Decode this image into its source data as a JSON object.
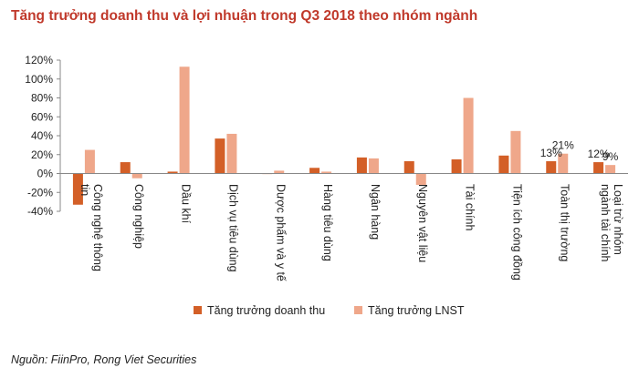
{
  "title": "Tăng trưởng doanh thu và lợi nhuận trong Q3 2018 theo nhóm ngành",
  "source": "Nguồn: FiinPro, Rong Viet Securities",
  "colors": {
    "revenue": "#d35f27",
    "profit": "#efa78a",
    "axis": "#888888",
    "title": "#c0392b"
  },
  "chart_data": {
    "type": "bar",
    "categories": [
      [
        "Công nghệ thông",
        "tin"
      ],
      [
        "Công nghiệp"
      ],
      [
        "Dầu khí"
      ],
      [
        "Dịch vụ tiêu dùng"
      ],
      [
        "Dược phẩm và y tế"
      ],
      [
        "Hàng tiêu dùng"
      ],
      [
        "Ngân hàng"
      ],
      [
        "Nguyên vật liệu"
      ],
      [
        "Tài chính"
      ],
      [
        "Tiện ích công đồng"
      ],
      [
        "Toàn thị trường"
      ],
      [
        "Loại trừ nhóm",
        "ngành tài chính"
      ]
    ],
    "series": [
      {
        "name": "Tăng trưởng doanh thu",
        "values": [
          -33,
          12,
          2,
          37,
          0,
          6,
          17,
          13,
          15,
          19,
          13,
          12
        ]
      },
      {
        "name": "Tăng trưởng LNST",
        "values": [
          25,
          -5,
          113,
          42,
          3,
          2,
          16,
          -12,
          80,
          45,
          21,
          9
        ]
      }
    ],
    "data_labels": [
      {
        "category_index": 10,
        "series_index": 0,
        "text": "13%"
      },
      {
        "category_index": 10,
        "series_index": 1,
        "text": "21%"
      },
      {
        "category_index": 11,
        "series_index": 0,
        "text": "12%"
      },
      {
        "category_index": 11,
        "series_index": 1,
        "text": "9%"
      }
    ],
    "yticks": [
      "120%",
      "100%",
      "80%",
      "60%",
      "40%",
      "20%",
      "0%",
      "-20%",
      "-40%"
    ],
    "ylim": [
      -40,
      120
    ],
    "grid": false,
    "legend": "bottom",
    "xlabel": "",
    "ylabel": ""
  }
}
